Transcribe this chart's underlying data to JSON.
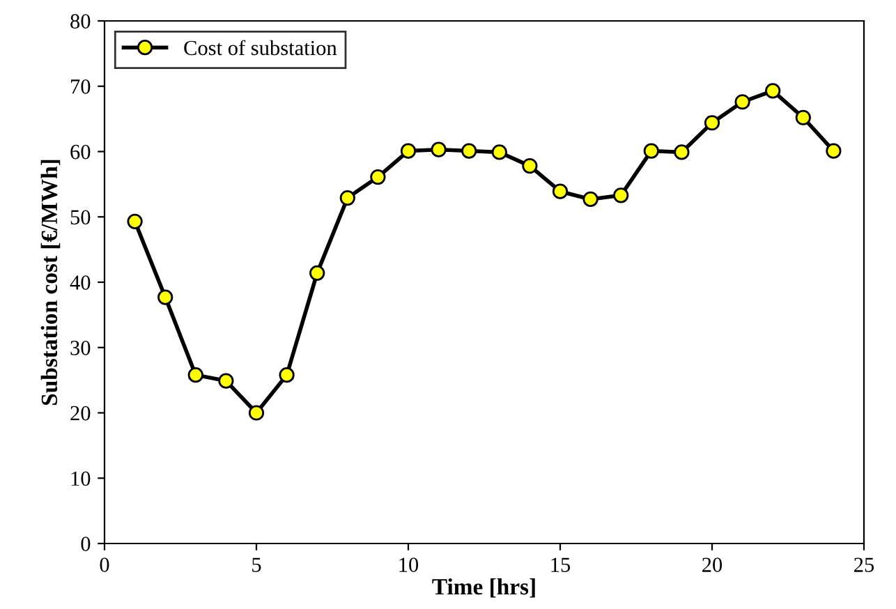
{
  "chart_data": {
    "type": "line",
    "xlabel": "Time [hrs]",
    "ylabel": "Substation cost [€/MWh]",
    "x": [
      1,
      2,
      3,
      4,
      5,
      6,
      7,
      8,
      9,
      10,
      11,
      12,
      13,
      14,
      15,
      16,
      17,
      18,
      19,
      20,
      21,
      22,
      23,
      24
    ],
    "series": [
      {
        "name": "Cost of substation",
        "color": "#000000",
        "values": [
          49.3,
          37.7,
          25.8,
          24.9,
          20,
          25.8,
          41.4,
          52.9,
          56.1,
          60.1,
          60.3,
          60.1,
          59.9,
          57.8,
          53.9,
          52.7,
          53.3,
          60.1,
          59.9,
          64.4,
          67.6,
          69.3,
          65.2,
          60.1
        ]
      }
    ],
    "marker": "circle",
    "line_style": "solid",
    "legend": "top left",
    "grid": false,
    "xlim": [
      0,
      25
    ],
    "xticks": [
      0,
      5,
      10,
      15,
      20,
      25
    ],
    "ylim": [
      0,
      80
    ],
    "yticks": [
      0,
      10,
      20,
      30,
      40,
      50,
      60,
      70,
      80
    ]
  }
}
